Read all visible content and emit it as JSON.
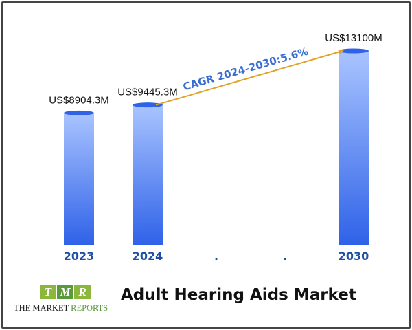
{
  "chart_data": {
    "type": "bar",
    "categories": [
      "2023",
      "2024",
      ".",
      ".",
      "2030"
    ],
    "values": [
      8904.3,
      9445.3,
      null,
      null,
      13100
    ],
    "data_labels": [
      "US$8904.3M",
      "US$9445.3M",
      "",
      "",
      "US$13100M"
    ],
    "title": "Adult Hearing Aids Market",
    "xlabel": "",
    "ylabel": "",
    "ylim": [
      0,
      13100
    ],
    "grid": false,
    "legend": "none",
    "annotation": {
      "text": "CAGR 2024-2030:5.6%",
      "from_category": "2024",
      "to_category": "2030"
    },
    "colors": {
      "bar_top": "#a9c4ff",
      "bar_bottom": "#2f62e8",
      "bar_cap": "#2f62e8",
      "tick_label": "#1d4fa3",
      "arrow": "#e0a228",
      "annotation_text": "#3a6fd1"
    }
  },
  "logo": {
    "letters": [
      "T",
      "M",
      "R"
    ],
    "text_dark": "THE MARKET ",
    "text_green": "REPORTS",
    "colors": [
      "#8bb83a",
      "#5a9a3c",
      "#8bb83a"
    ]
  }
}
